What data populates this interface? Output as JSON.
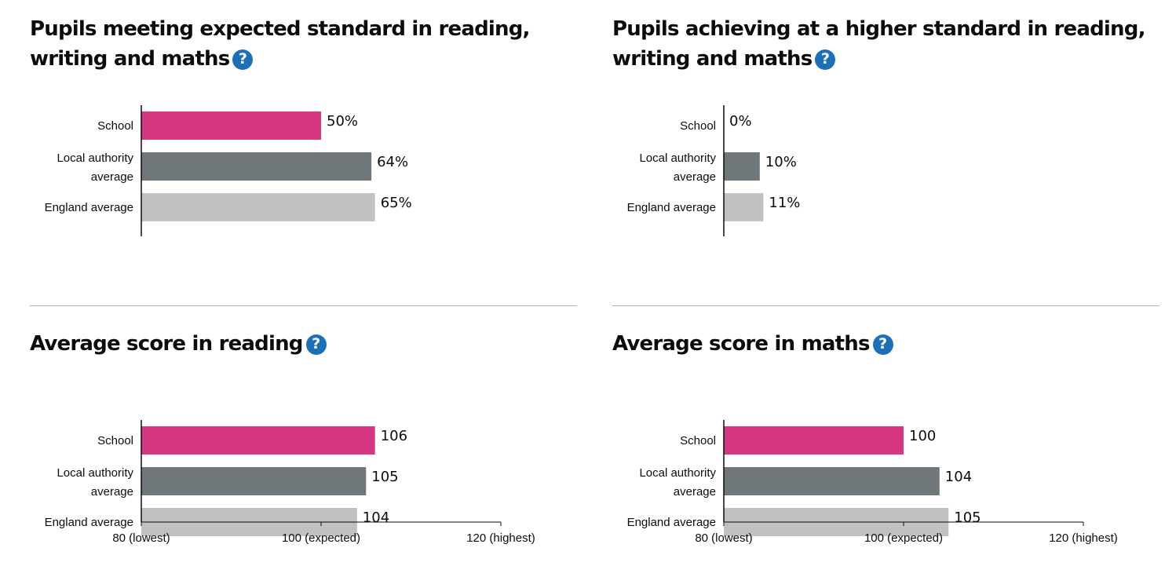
{
  "colors": {
    "school": "#d53880",
    "local_authority": "#6f777b",
    "england": "#bfc1c3",
    "help": "#1d70b8"
  },
  "help_icon": {
    "icon": "question-circle-icon",
    "glyph": "?"
  },
  "panels": [
    {
      "title": "Pupils meeting expected standard in reading, writing and maths"
    },
    {
      "title": "Pupils achieving at a higher standard in reading, writing and maths"
    },
    {
      "title": "Average score in reading"
    },
    {
      "title": "Average score in maths"
    }
  ],
  "chart_data": [
    {
      "type": "bar",
      "orientation": "horizontal",
      "title": "Pupils meeting expected standard in reading, writing and maths",
      "categories": [
        "School",
        "Local authority average",
        "England average"
      ],
      "category_lines": [
        [
          "School"
        ],
        [
          "Local authority",
          "average"
        ],
        [
          "England average"
        ]
      ],
      "values": [
        50,
        64,
        65
      ],
      "labels": [
        "50%",
        "64%",
        "65%"
      ],
      "xlim": [
        0,
        100
      ],
      "grid": false
    },
    {
      "type": "bar",
      "orientation": "horizontal",
      "title": "Pupils achieving at a higher standard in reading, writing and maths",
      "categories": [
        "School",
        "Local authority average",
        "England average"
      ],
      "category_lines": [
        [
          "School"
        ],
        [
          "Local authority",
          "average"
        ],
        [
          "England average"
        ]
      ],
      "values": [
        0,
        10,
        11
      ],
      "labels": [
        "0%",
        "10%",
        "11%"
      ],
      "xlim": [
        0,
        100
      ],
      "grid": false
    },
    {
      "type": "bar",
      "orientation": "horizontal",
      "title": "Average score in reading",
      "categories": [
        "School",
        "Local authority average",
        "England average"
      ],
      "category_lines": [
        [
          "School"
        ],
        [
          "Local authority",
          "average"
        ],
        [
          "England average"
        ]
      ],
      "values": [
        106,
        105,
        104
      ],
      "labels": [
        "106",
        "105",
        "104"
      ],
      "xlim": [
        80,
        120
      ],
      "xticks": [
        {
          "value": 80,
          "label": "80 (lowest)"
        },
        {
          "value": 100,
          "label": "100 (expected)"
        },
        {
          "value": 120,
          "label": "120 (highest)"
        }
      ],
      "grid": false
    },
    {
      "type": "bar",
      "orientation": "horizontal",
      "title": "Average score in maths",
      "categories": [
        "School",
        "Local authority average",
        "England average"
      ],
      "category_lines": [
        [
          "School"
        ],
        [
          "Local authority",
          "average"
        ],
        [
          "England average"
        ]
      ],
      "values": [
        100,
        104,
        105
      ],
      "labels": [
        "100",
        "104",
        "105"
      ],
      "xlim": [
        80,
        120
      ],
      "xticks": [
        {
          "value": 80,
          "label": "80 (lowest)"
        },
        {
          "value": 100,
          "label": "100 (expected)"
        },
        {
          "value": 120,
          "label": "120 (highest)"
        }
      ],
      "grid": false
    }
  ]
}
